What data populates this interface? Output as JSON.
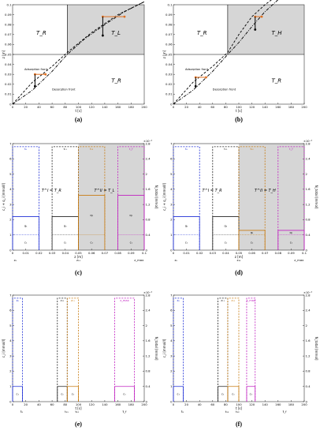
{
  "panels": [
    {
      "id": "a",
      "label": "(a)",
      "type": "line",
      "xlabel": "t [s]",
      "ylabel": "z [m]",
      "xticks": [
        0,
        20,
        40,
        60,
        80,
        100,
        120,
        140,
        160,
        180,
        200
      ],
      "yticks": [
        0,
        0.01,
        0.02,
        0.03,
        0.04,
        0.05,
        0.06,
        0.07,
        0.08,
        0.09,
        0.1
      ],
      "xlim": [
        0,
        200
      ],
      "ylim": [
        0,
        0.1
      ],
      "region_labels": [
        "T_R",
        "T_L",
        "T_R"
      ],
      "annotations": [
        "Adsorption front",
        "Desorption front"
      ],
      "switch_time": 83,
      "switch_z": 0.05,
      "adsorption_front": {
        "t": [
          0,
          30,
          60,
          83,
          120,
          160,
          200
        ],
        "z": [
          0,
          0.022,
          0.038,
          0.052,
          0.072,
          0.09,
          0.103
        ]
      },
      "desorption_front": {
        "t": [
          0,
          30,
          60,
          83,
          110,
          140,
          170,
          200
        ],
        "z": [
          0,
          0.014,
          0.033,
          0.05,
          0.066,
          0.08,
          0.093,
          0.103
        ]
      },
      "orange_points": [
        [
          34,
          0.03
        ],
        [
          50,
          0.03
        ],
        [
          137,
          0.088
        ],
        [
          170,
          0.088
        ]
      ],
      "black_points": [
        [
          34,
          0.018
        ],
        [
          137,
          0.069
        ]
      ]
    },
    {
      "id": "b",
      "label": "(b)",
      "type": "line",
      "xlabel": "t [s]",
      "ylabel": "z [m]",
      "xticks": [
        0,
        20,
        40,
        60,
        80,
        100,
        120,
        140,
        160,
        180,
        200
      ],
      "yticks": [
        0,
        0.01,
        0.02,
        0.03,
        0.04,
        0.05,
        0.06,
        0.07,
        0.08,
        0.09,
        0.1
      ],
      "xlim": [
        0,
        200
      ],
      "ylim": [
        0,
        0.1
      ],
      "region_labels": [
        "T_R",
        "T_H",
        "T_R"
      ],
      "annotations": [
        "Adsorption front",
        "Desorption front"
      ],
      "switch_time": 83,
      "switch_z": 0.05,
      "adsorption_front": {
        "t": [
          0,
          30,
          60,
          83,
          100,
          120,
          140,
          150
        ],
        "z": [
          0,
          0.022,
          0.038,
          0.052,
          0.07,
          0.088,
          0.1,
          0.105
        ]
      },
      "desorption_front": {
        "t": [
          0,
          30,
          60,
          83,
          100,
          120,
          140,
          160
        ],
        "z": [
          0,
          0.014,
          0.033,
          0.05,
          0.062,
          0.078,
          0.093,
          0.105
        ]
      },
      "orange_points": [
        [
          34,
          0.027
        ],
        [
          50,
          0.027
        ],
        [
          125,
          0.088
        ],
        [
          135,
          0.088
        ]
      ],
      "black_points": [
        [
          34,
          0.018
        ],
        [
          125,
          0.075
        ]
      ]
    },
    {
      "id": "c",
      "label": "(c)",
      "type": "bar",
      "xlabel": "z [m]",
      "ylabel": "c_i + q_i [mmol/l]",
      "y2label": "N_total [mmol]",
      "xticks": [
        0,
        0.01,
        0.02,
        0.03,
        0.04,
        0.05,
        0.06,
        0.07,
        0.08,
        0.09,
        0.1
      ],
      "yticks": [
        0,
        1,
        2,
        3,
        4,
        5,
        6,
        7
      ],
      "y2ticks": [
        0,
        0.4,
        0.8,
        1.2,
        1.6,
        2,
        2.4,
        2.8
      ],
      "y2exp": "×10⁻⁴",
      "xsub": [
        "z₀",
        "z₁₁",
        "z_max"
      ],
      "eq1": "T^I = T_R",
      "eq2": "T^II = T_L",
      "shade_from": 0.05,
      "cells": [
        {
          "x0": 0,
          "x1": 0.02,
          "c": 1.0,
          "q": 1.2,
          "top": 6.8,
          "color": "#1f2fd6",
          "tag": "t₀"
        },
        {
          "x0": 0.03,
          "x1": 0.05,
          "c": 1.0,
          "q": 1.2,
          "top": 6.8,
          "color": "#222222",
          "tag": "t₁₁"
        },
        {
          "x0": 0.05,
          "x1": 0.07,
          "c": 1.0,
          "q": 2.6,
          "top": 6.8,
          "color": "#c77a10",
          "tag": "t₁₂"
        },
        {
          "x0": 0.08,
          "x1": 0.1,
          "c": 1.0,
          "q": 2.6,
          "top": 6.8,
          "color": "#c020c0",
          "tag": "t_f"
        }
      ]
    },
    {
      "id": "d",
      "label": "(d)",
      "type": "bar",
      "xlabel": "z [m]",
      "ylabel": "c_i + q_i [mmol/l]",
      "y2label": "N_total [mmol]",
      "xticks": [
        0,
        0.01,
        0.02,
        0.03,
        0.04,
        0.05,
        0.06,
        0.07,
        0.08,
        0.09,
        0.1
      ],
      "yticks": [
        0,
        1,
        2,
        3,
        4,
        5,
        6,
        7
      ],
      "y2ticks": [
        0,
        0.4,
        0.8,
        1.2,
        1.6,
        2,
        2.4,
        2.8
      ],
      "y2exp": "×10⁻⁴",
      "xsub": [
        "z₀",
        "z₁₁",
        "z_max"
      ],
      "eq1": "T^I = T_R",
      "eq2": "T^II = T_H",
      "shade_from": 0.05,
      "cells": [
        {
          "x0": 0,
          "x1": 0.02,
          "c": 1.0,
          "q": 1.2,
          "top": 6.8,
          "color": "#1f2fd6",
          "tag": "t₀"
        },
        {
          "x0": 0.03,
          "x1": 0.05,
          "c": 1.0,
          "q": 1.2,
          "top": 6.8,
          "color": "#222222",
          "tag": "t₁₁"
        },
        {
          "x0": 0.05,
          "x1": 0.07,
          "c": 1.0,
          "q": 0.3,
          "top": 6.8,
          "color": "#c77a10",
          "tag": "t₁₂"
        },
        {
          "x0": 0.08,
          "x1": 0.1,
          "c": 1.0,
          "q": 0.3,
          "top": 6.8,
          "color": "#c020c0",
          "tag": "t_f"
        }
      ]
    },
    {
      "id": "e",
      "label": "(e)",
      "type": "bar",
      "xlabel": "t [s]",
      "ylabel": "c_i [mmol/l]",
      "y2label": "N_total [mmol]",
      "xticks": [
        0,
        20,
        40,
        60,
        80,
        100,
        120,
        140,
        160,
        180,
        200
      ],
      "yticks": [
        0,
        1,
        2,
        3,
        4,
        5,
        6,
        7
      ],
      "y2ticks": [
        0,
        0.4,
        0.8,
        1.2,
        1.6,
        2,
        2.4,
        2.8
      ],
      "y2exp": "×10⁻⁴",
      "xsub": [
        "t̃₀",
        "t₁₁",
        "t₁₂",
        "t̃_f"
      ],
      "cells": [
        {
          "x0": 0,
          "x1": 15,
          "c": 1.0,
          "top": 6.8,
          "color": "#1f2fd6",
          "tag": "z₀"
        },
        {
          "x0": 68,
          "x1": 83,
          "c": 1.0,
          "top": 6.8,
          "color": "#222222",
          "tag": "z₁₁"
        },
        {
          "x0": 83,
          "x1": 100,
          "c": 1.0,
          "top": 6.8,
          "color": "#c77a10",
          "tag": "z₁₁"
        },
        {
          "x0": 155,
          "x1": 185,
          "c": 1.0,
          "top": 6.8,
          "color": "#c020c0",
          "tag": "z_max"
        }
      ]
    },
    {
      "id": "f",
      "label": "(f)",
      "type": "bar",
      "xlabel": "t [s]",
      "ylabel": "c_i [mmol/l]",
      "y2label": "N_total [mmol]",
      "xticks": [
        0,
        20,
        40,
        60,
        80,
        100,
        120,
        140,
        160,
        180,
        200
      ],
      "yticks": [
        0,
        1,
        2,
        3,
        4,
        5,
        6,
        7
      ],
      "y2ticks": [
        0,
        0.4,
        0.8,
        1.2,
        1.6,
        2,
        2.4,
        2.8
      ],
      "y2exp": "×10⁻⁴",
      "xsub": [
        "t̃₀",
        "t₁₁",
        "t₁₂",
        "t̃_f"
      ],
      "cells": [
        {
          "x0": 0,
          "x1": 15,
          "c": 1.0,
          "top": 6.8,
          "color": "#1f2fd6",
          "tag": "z₀"
        },
        {
          "x0": 68,
          "x1": 83,
          "c": 1.0,
          "top": 6.8,
          "color": "#222222",
          "tag": "z₁₁"
        },
        {
          "x0": 83,
          "x1": 100,
          "c": 1.0,
          "top": 6.8,
          "color": "#c77a10",
          "tag": "z₁₁"
        },
        {
          "x0": 112,
          "x1": 125,
          "c": 1.0,
          "top": 6.8,
          "color": "#c020c0",
          "tag": "z_max"
        }
      ]
    }
  ],
  "colors": {
    "shade": "#d6d6d6",
    "orange": "#e07020",
    "axis": "#333333"
  }
}
